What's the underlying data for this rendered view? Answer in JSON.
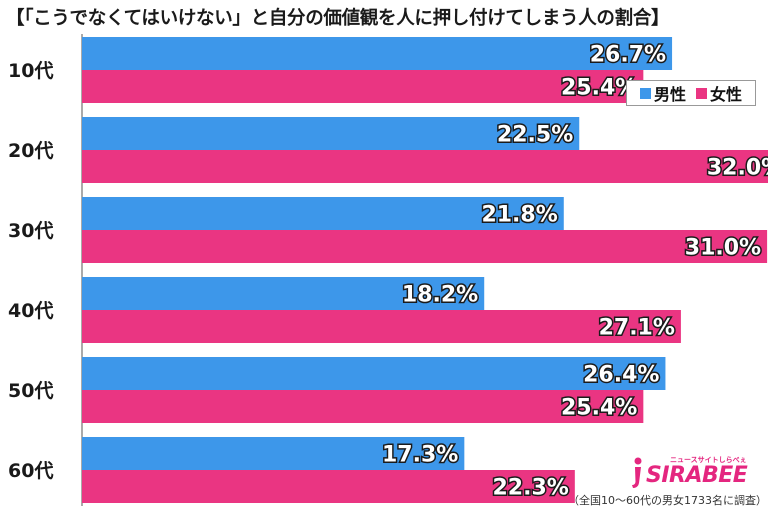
{
  "title": "【「こうでなくてはいけない」と自分の価値観を人に押し付けてしまう人の割合】",
  "legend": {
    "male": "男性",
    "female": "女性"
  },
  "colors": {
    "male": "#3d97ea",
    "female": "#ea3582"
  },
  "chart_data": {
    "type": "bar",
    "orientation": "horizontal",
    "categories": [
      "10代",
      "20代",
      "30代",
      "40代",
      "50代",
      "60代"
    ],
    "series": [
      {
        "name": "男性",
        "values": [
          26.7,
          22.5,
          21.8,
          18.2,
          26.4,
          17.3
        ]
      },
      {
        "name": "女性",
        "values": [
          25.4,
          32.0,
          31.0,
          27.1,
          25.4,
          22.3
        ]
      }
    ],
    "unit": "%",
    "xlim": [
      0,
      34.5
    ],
    "legend_position": "top-right"
  },
  "logo": {
    "brand": "SIRABEE",
    "tagline": "ニュースサイトしらべぇ"
  },
  "footnote": "（全国10～60代の男女1733名に調査）"
}
